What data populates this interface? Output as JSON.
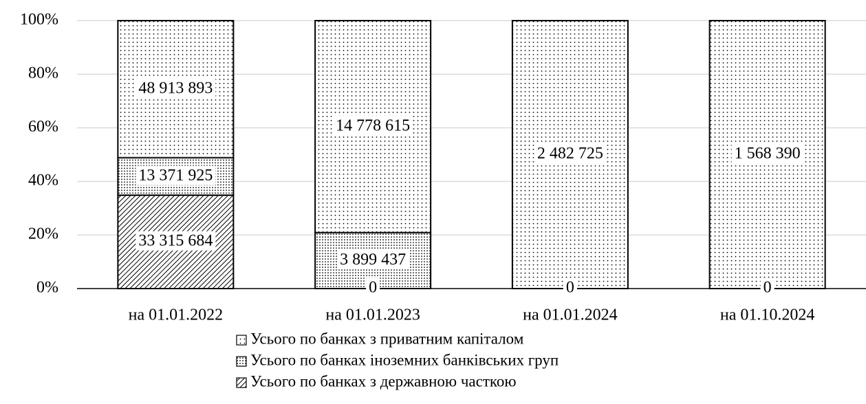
{
  "chart_data": {
    "type": "stacked_percent_bar",
    "categories": [
      "на 01.01.2022",
      "на 01.01.2023",
      "на 01.01.2024",
      "на 01.10.2024"
    ],
    "series": [
      {
        "name": "Усього по банках з державною часткою",
        "color": "#000000",
        "pattern": "hatch",
        "values": [
          33315684,
          0,
          0,
          0
        ],
        "value_labels": [
          "33 315 684",
          "0",
          "0",
          "0"
        ]
      },
      {
        "name": "Усього по банках іноземних банківських груп",
        "color": "#000000",
        "pattern": "dense-dots",
        "values": [
          13371925,
          3899437,
          0,
          0
        ],
        "value_labels": [
          "13 371 925",
          "3 899 437",
          "0",
          "0"
        ]
      },
      {
        "name": "Усього по банках з приватним капіталом",
        "color": "#000000",
        "pattern": "dots",
        "values": [
          48913893,
          14778615,
          2482725,
          1568390
        ],
        "value_labels": [
          "48 913 893",
          "14 778 615",
          "2 482 725",
          "1 568 390"
        ]
      }
    ],
    "ylim": [
      0,
      100
    ],
    "yticks": [
      {
        "value": 0,
        "label": "0%"
      },
      {
        "value": 20,
        "label": "20%"
      },
      {
        "value": 40,
        "label": "40%"
      },
      {
        "value": 60,
        "label": "60%"
      },
      {
        "value": 80,
        "label": "80%"
      },
      {
        "value": 100,
        "label": "100%"
      }
    ],
    "grid": true,
    "legend": "bottom"
  }
}
